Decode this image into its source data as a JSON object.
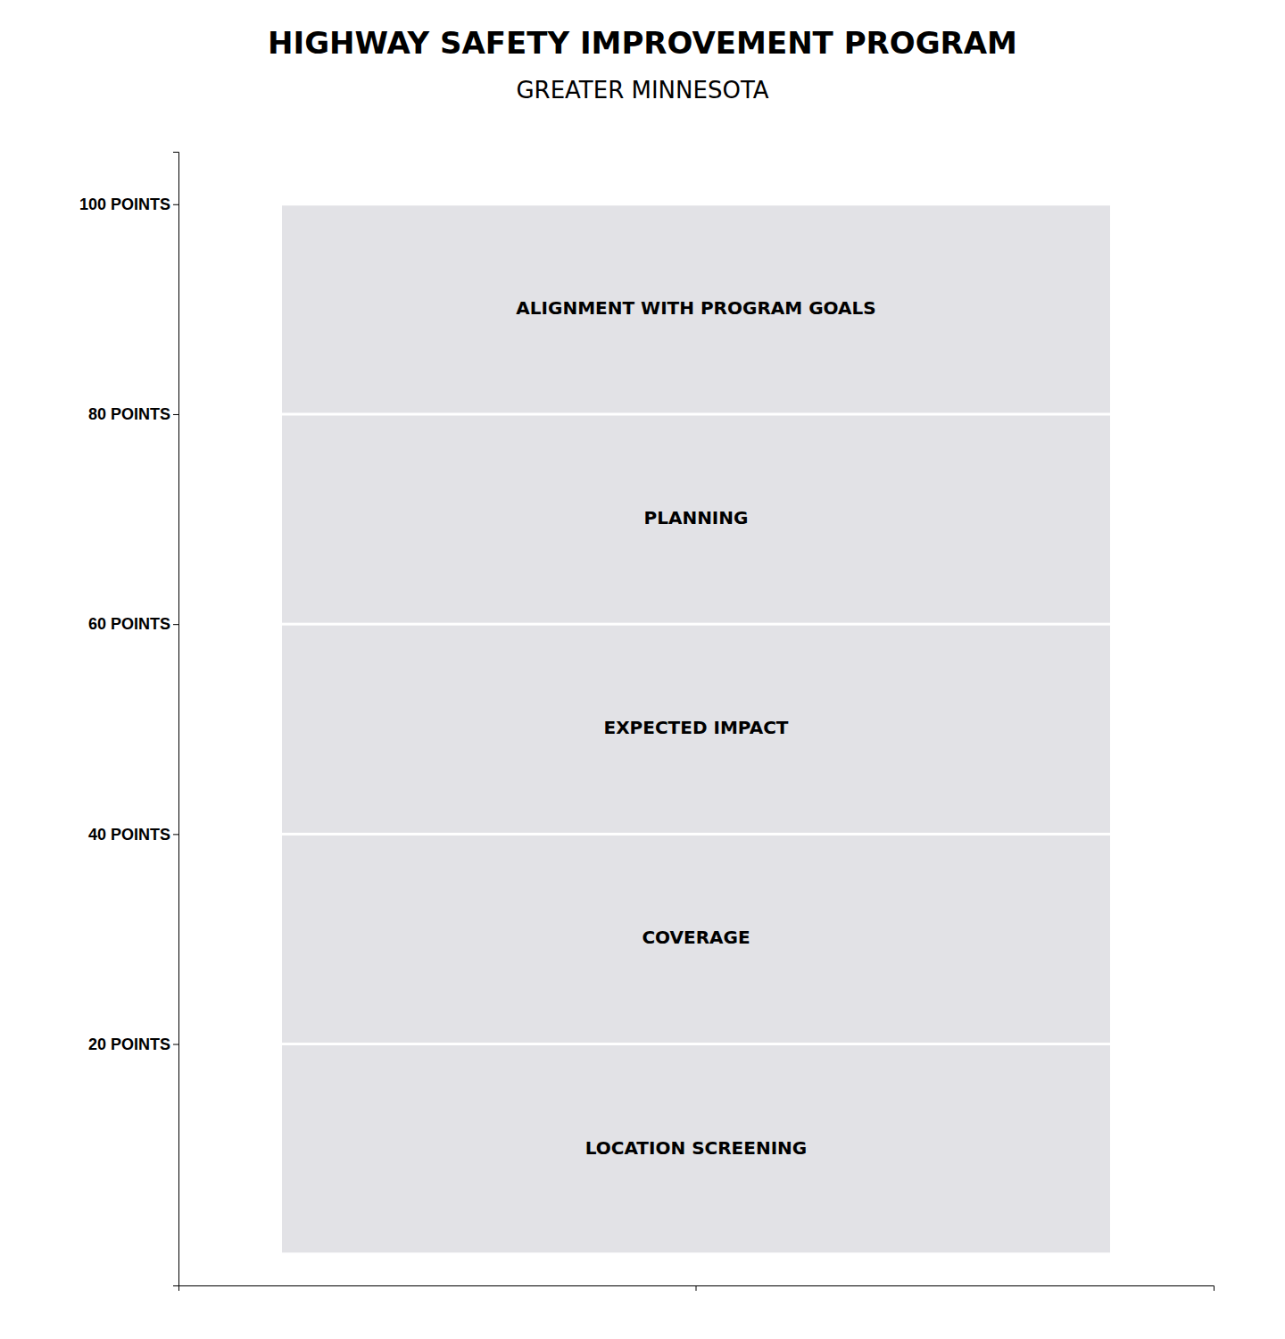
{
  "chart_data": {
    "type": "bar",
    "stacked": true,
    "title": "HIGHWAY SAFETY IMPROVEMENT PROGRAM",
    "subtitle": "GREATER MINNESOTA",
    "categories": [
      null
    ],
    "color": "#e2e2e6",
    "series": [
      {
        "name": "LOCATION SCREENING",
        "values": [
          20
        ]
      },
      {
        "name": "COVERAGE",
        "values": [
          20
        ]
      },
      {
        "name": "EXPECTED IMPACT",
        "values": [
          20
        ]
      },
      {
        "name": "PLANNING",
        "values": [
          20
        ]
      },
      {
        "name": "ALIGNMENT WITH PROGRAM GOALS",
        "values": [
          20
        ]
      }
    ],
    "ylim": [
      -3,
      105
    ],
    "yticks": [
      {
        "value": 20,
        "label": "20 POINTS"
      },
      {
        "value": 40,
        "label": "40 POINTS"
      },
      {
        "value": 60,
        "label": "60 POINTS"
      },
      {
        "value": 80,
        "label": "80 POINTS"
      },
      {
        "value": 100,
        "label": "100 POINTS"
      }
    ],
    "grid": false
  }
}
